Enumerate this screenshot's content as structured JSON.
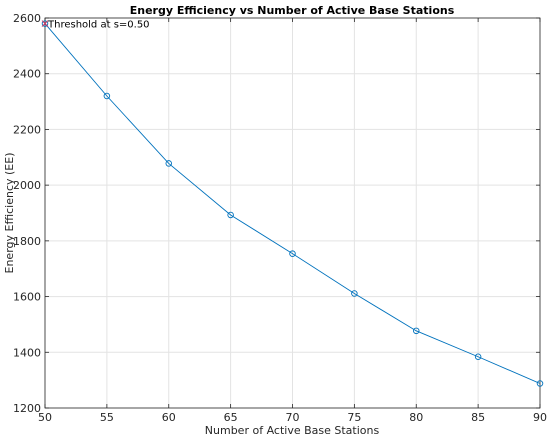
{
  "chart_data": {
    "type": "line",
    "title": "Energy Efficiency vs Number of Active Base Stations",
    "xlabel": "Number of Active Base Stations",
    "ylabel": "Energy Efficiency (EE)",
    "xlim": [
      50,
      90
    ],
    "ylim": [
      1200,
      2600
    ],
    "xticks": [
      50,
      55,
      60,
      65,
      70,
      75,
      80,
      85,
      90
    ],
    "yticks": [
      1200,
      1400,
      1600,
      1800,
      2000,
      2200,
      2400,
      2600
    ],
    "grid": true,
    "series": [
      {
        "color": "#0072BD",
        "marker": "circle",
        "x": [
          50,
          55,
          60,
          65,
          70,
          75,
          80,
          85,
          90
        ],
        "y": [
          2580,
          2320,
          2078,
          1893,
          1754,
          1611,
          1477,
          1384,
          1288
        ]
      }
    ],
    "annotations": [
      {
        "x": 50,
        "y": 2580,
        "marker": "x",
        "color": "#cc3366",
        "text": "Threshold at s=0.50"
      }
    ]
  }
}
